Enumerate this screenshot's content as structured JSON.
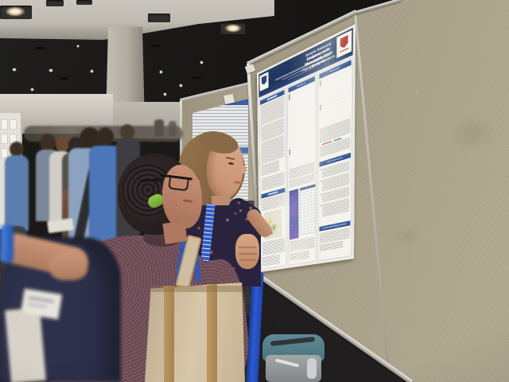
{
  "scene": {
    "setting_label": "conference poster session",
    "colors": {
      "board_fabric": "#a49c86",
      "carpet": "#2d2c2f",
      "ceiling": "#141416",
      "soffit": "#c7c4be",
      "poster_navy": "#1c3765",
      "section_blue": "#2f5496",
      "lanyard_blue": "#2f5cd0",
      "strap_blue": "#1e4fd8",
      "scrunchie_green": "#84bf3c",
      "sweater_mauve": "#74525f",
      "tote_cream": "#d9cab0",
      "backpack_teal": "#53808e"
    }
  },
  "poster": {
    "title_line1": "Innate Immune Responses in Monocytes from Kenyan",
    "title_line2": "Children with Uncomplicated Falciparum Malaria",
    "sections": {
      "results_mid": "Results",
      "results_right": "Results",
      "conclusions": "Conclusions",
      "acknowledgements": "Acknowledgements"
    },
    "charts": {
      "palette_mid": [
        "#b23b31",
        "#7e2a24",
        "#3c5fa4",
        "#22345c",
        "#8a8f98"
      ],
      "palette_right": [
        "#4e9a4e",
        "#e07b28",
        "#c03a30",
        "#3b5fa4",
        "#7b4fa0",
        "#4fb0a8"
      ],
      "mid_panel_a": [
        [
          0.9,
          0.55,
          0.3,
          0.15,
          0.1
        ],
        [
          0.8,
          0.5,
          0.6,
          0.25,
          0.15
        ],
        [
          0.7,
          0.45,
          0.25,
          0.6,
          0.2
        ],
        [
          0.85,
          0.6,
          0.35,
          0.2,
          0.5
        ],
        [
          0.75,
          0.5,
          0.65,
          0.3,
          0.15
        ],
        [
          0.9,
          0.4,
          0.3,
          0.55,
          0.2
        ]
      ],
      "mid_panel_b": [
        [
          0.85,
          0.5,
          0.3,
          0.2,
          0.1
        ],
        [
          0.7,
          0.55,
          0.35,
          0.6,
          0.2
        ],
        [
          0.8,
          0.45,
          0.6,
          0.3,
          0.15
        ]
      ],
      "right_panel_a": [
        [
          0.7,
          0.9,
          0.5,
          0.3
        ],
        [
          0.6,
          0.8,
          0.45,
          0.7
        ],
        [
          0.5,
          0.75,
          0.85,
          0.4
        ],
        [
          0.65,
          0.5,
          0.9,
          0.6
        ]
      ],
      "right_panel_b": [
        [
          0.8,
          0.4,
          0.6,
          0.9
        ],
        [
          0.55,
          0.7,
          0.35,
          0.8
        ],
        [
          0.75,
          0.6,
          0.5,
          0.4
        ],
        [
          0.6,
          0.85,
          0.7,
          0.5
        ]
      ]
    }
  }
}
